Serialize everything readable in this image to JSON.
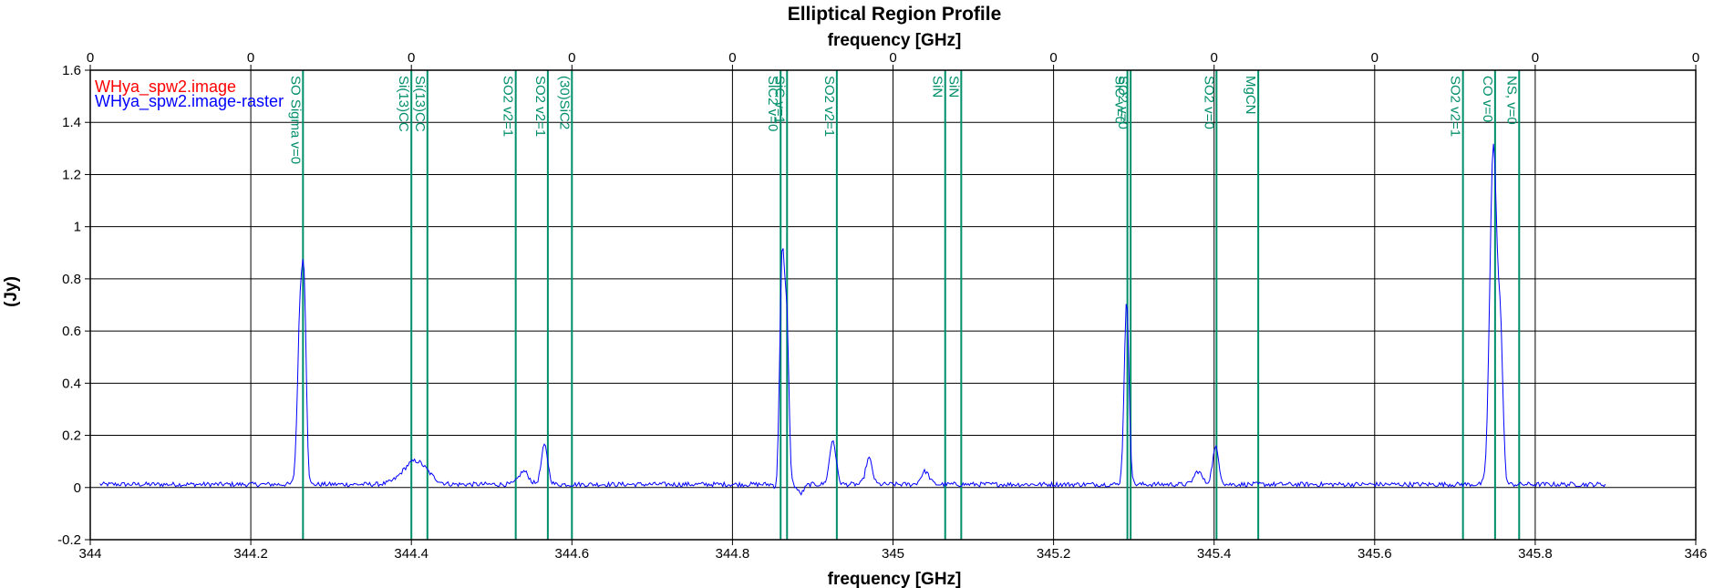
{
  "chart_data": {
    "type": "line",
    "title": "Elliptical Region Profile",
    "xlabel": "frequency [GHz]",
    "top_xlabel": "frequency [GHz]",
    "ylabel": "(Jy)",
    "xlim": [
      344.0,
      346.0
    ],
    "ylim": [
      -0.2,
      1.6
    ],
    "x_ticks": [
      "344",
      "344.2",
      "344.4",
      "344.6",
      "344.8",
      "345",
      "345.2",
      "345.4",
      "345.6",
      "345.8",
      "346"
    ],
    "top_ticks": [
      "0",
      "0",
      "0",
      "0",
      "0",
      "0",
      "0",
      "0",
      "0",
      "0",
      "0"
    ],
    "y_ticks": [
      "-0.2",
      "0",
      "0.2",
      "0.4",
      "0.6",
      "0.8",
      "1",
      "1.2",
      "1.4",
      "1.6"
    ],
    "grid": true,
    "legend_position": "top-left",
    "legend": [
      {
        "name": "WHya_spw2.image",
        "color": "#ff0000"
      },
      {
        "name": "WHya_spw2.image-raster",
        "color": "#0000ff"
      }
    ],
    "series": [
      {
        "name": "WHya_spw2.image-raster",
        "color": "#0000ff",
        "x_start": 344.012,
        "x_end": 345.888,
        "baseline": 0.012,
        "peaks": [
          {
            "x": 344.262,
            "y": 0.7,
            "width": 0.0035
          },
          {
            "x": 344.267,
            "y": 0.52,
            "width": 0.0025
          },
          {
            "x": 344.405,
            "y": 0.09,
            "width": 0.015
          },
          {
            "x": 344.54,
            "y": 0.05,
            "width": 0.006
          },
          {
            "x": 344.566,
            "y": 0.15,
            "width": 0.004
          },
          {
            "x": 344.862,
            "y": 0.88,
            "width": 0.003
          },
          {
            "x": 344.868,
            "y": 0.55,
            "width": 0.0025
          },
          {
            "x": 344.925,
            "y": 0.17,
            "width": 0.004
          },
          {
            "x": 344.97,
            "y": 0.1,
            "width": 0.004
          },
          {
            "x": 345.04,
            "y": 0.05,
            "width": 0.005
          },
          {
            "x": 345.291,
            "y": 0.7,
            "width": 0.003
          },
          {
            "x": 345.38,
            "y": 0.05,
            "width": 0.005
          },
          {
            "x": 345.402,
            "y": 0.14,
            "width": 0.004
          },
          {
            "x": 345.748,
            "y": 1.3,
            "width": 0.0045
          },
          {
            "x": 345.757,
            "y": 0.48,
            "width": 0.003
          }
        ],
        "dips": [
          {
            "x": 344.855,
            "y": -0.03,
            "width": 0.002
          },
          {
            "x": 344.885,
            "y": -0.035,
            "width": 0.004
          },
          {
            "x": 345.738,
            "y": -0.02,
            "width": 0.002
          }
        ]
      }
    ],
    "lines": [
      {
        "x": 344.265,
        "label": "SO Sigma v=0"
      },
      {
        "x": 344.4,
        "label": "Si(13)CC"
      },
      {
        "x": 344.42,
        "label": "Si(13)CC"
      },
      {
        "x": 344.53,
        "label": "SO2 v2=1"
      },
      {
        "x": 344.57,
        "label": "SO2 v2=1"
      },
      {
        "x": 344.6,
        "label": "(30)SiC2"
      },
      {
        "x": 344.86,
        "label": "SiC2 v=0"
      },
      {
        "x": 344.868,
        "label": "SiC v=1"
      },
      {
        "x": 344.93,
        "label": "SO2 v2=1"
      },
      {
        "x": 345.065,
        "label": "SiN"
      },
      {
        "x": 345.085,
        "label": "SiN"
      },
      {
        "x": 345.292,
        "label": "SiC v=0"
      },
      {
        "x": 345.296,
        "label": "SO2 v=0"
      },
      {
        "x": 345.403,
        "label": "SO2 v=0"
      },
      {
        "x": 345.455,
        "label": "MgCN"
      },
      {
        "x": 345.71,
        "label": "SO2 v2=1"
      },
      {
        "x": 345.75,
        "label": "CO v=0"
      },
      {
        "x": 345.78,
        "label": "NS, v=0"
      }
    ],
    "line_color": "#008f6b"
  }
}
